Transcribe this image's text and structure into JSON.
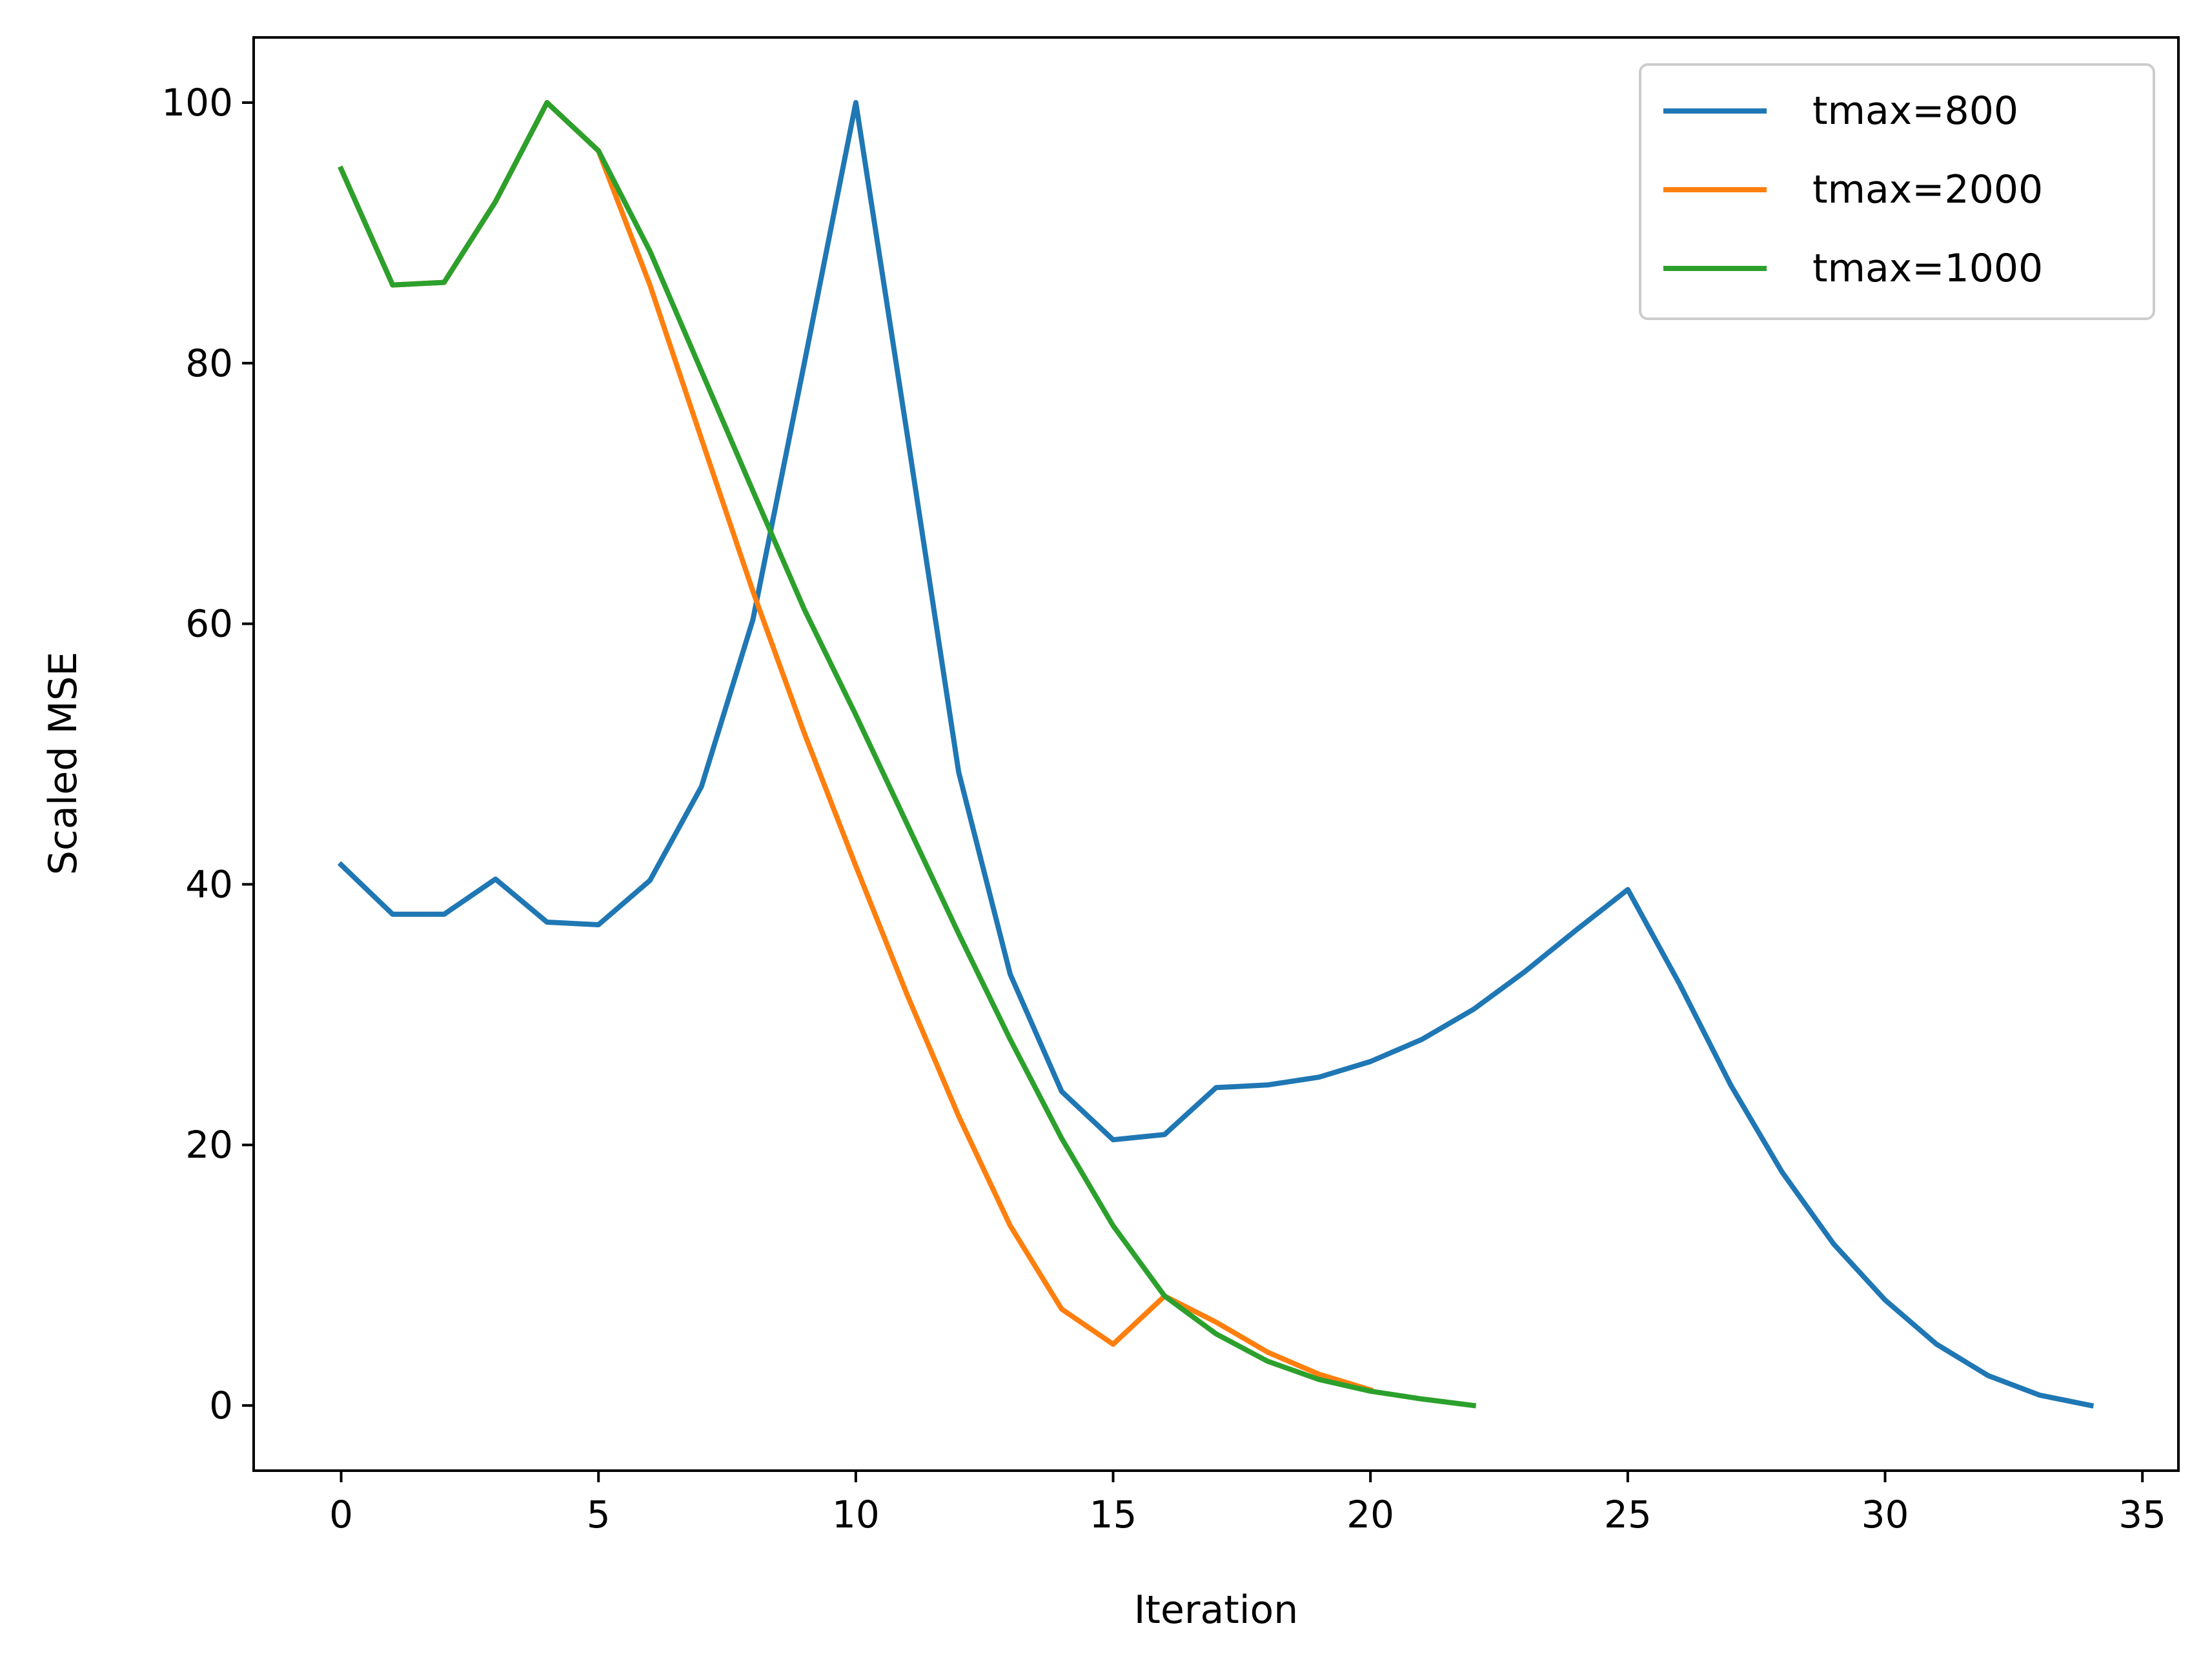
{
  "chart_data": {
    "type": "line",
    "title": "",
    "xlabel": "Iteration",
    "ylabel": "Scaled MSE",
    "xlim": [
      -1.7,
      35.7
    ],
    "ylim": [
      -5,
      105
    ],
    "xticks": [
      0,
      5,
      10,
      15,
      20,
      25,
      30,
      35
    ],
    "yticks": [
      0,
      20,
      40,
      60,
      80,
      100
    ],
    "grid": false,
    "legend_position": "top-right",
    "series": [
      {
        "name": "tmax=800",
        "color": "#1f77b4",
        "x": [
          0,
          1,
          2,
          3,
          4,
          5,
          6,
          7,
          8,
          9,
          10,
          11,
          12,
          13,
          14,
          15,
          16,
          17,
          18,
          19,
          20,
          21,
          22,
          23,
          24,
          25,
          26,
          27,
          28,
          29,
          30,
          31,
          32,
          33,
          34
        ],
        "y": [
          41.5,
          37.7,
          37.7,
          40.4,
          37.1,
          36.9,
          40.3,
          47.5,
          60.3,
          80.0,
          100.0,
          74.5,
          48.6,
          33.1,
          24.1,
          20.4,
          20.8,
          24.4,
          24.6,
          25.2,
          26.4,
          28.1,
          30.4,
          33.3,
          36.5,
          39.6,
          32.4,
          24.6,
          17.9,
          12.4,
          8.1,
          4.7,
          2.3,
          0.8,
          0.0
        ]
      },
      {
        "name": "tmax=2000",
        "color": "#ff7f0e",
        "x": [
          0,
          1,
          2,
          3,
          4,
          5,
          6,
          7,
          8,
          9,
          10,
          11,
          12,
          13,
          14,
          15,
          16,
          17,
          18,
          19,
          20
        ],
        "y": [
          94.9,
          86.0,
          86.2,
          92.4,
          100.0,
          96.3,
          86.0,
          74.2,
          62.5,
          51.6,
          41.4,
          31.5,
          22.2,
          13.8,
          7.4,
          4.7,
          8.4,
          6.4,
          4.1,
          2.4,
          1.2
        ]
      },
      {
        "name": "tmax=1000",
        "color": "#2ca02c",
        "x": [
          0,
          1,
          2,
          3,
          4,
          5,
          6,
          7,
          8,
          9,
          10,
          11,
          12,
          13,
          14,
          15,
          16,
          17,
          18,
          19,
          20,
          21,
          22
        ],
        "y": [
          94.9,
          86.0,
          86.2,
          92.4,
          100.0,
          96.3,
          88.6,
          79.4,
          70.2,
          61.1,
          53.0,
          44.6,
          36.2,
          28.1,
          20.5,
          13.8,
          8.4,
          5.5,
          3.4,
          2.0,
          1.1,
          0.5,
          0.0
        ]
      }
    ]
  }
}
